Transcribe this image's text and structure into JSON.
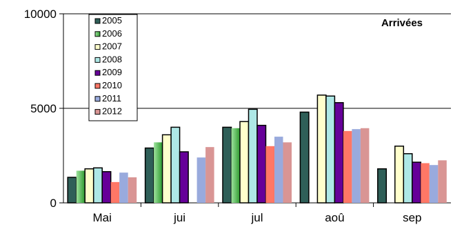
{
  "chart_data": {
    "type": "bar",
    "title": "Arrivées",
    "categories": [
      "Mai",
      "jui",
      "jul",
      "aoû",
      "sep"
    ],
    "ylim": [
      0,
      10000
    ],
    "yticks": [
      0,
      5000,
      10000
    ],
    "ytick_labels": [
      "0",
      "5000",
      "10000"
    ],
    "grid": true,
    "legend_position": "top-left",
    "series": [
      {
        "name": "2005",
        "color": "#2F5F58",
        "values": [
          1350,
          2900,
          4000,
          4800,
          1800
        ]
      },
      {
        "name": "2006",
        "color": "#44AA44",
        "values": [
          1700,
          3200,
          3950,
          null,
          null
        ]
      },
      {
        "name": "2007",
        "color": "#FFFFCC",
        "values": [
          1800,
          3600,
          4300,
          5700,
          3000
        ]
      },
      {
        "name": "2008",
        "color": "#AEE8E6",
        "values": [
          1850,
          4000,
          4950,
          5650,
          2600
        ]
      },
      {
        "name": "2009",
        "color": "#660099",
        "values": [
          1650,
          2700,
          4100,
          5300,
          2150
        ]
      },
      {
        "name": "2010",
        "color": "#FF7766",
        "values": [
          1100,
          null,
          3000,
          3800,
          2100
        ]
      },
      {
        "name": "2011",
        "color": "#99AADD",
        "values": [
          1600,
          2400,
          3500,
          3900,
          2000
        ]
      },
      {
        "name": "2012",
        "color": "#D99594",
        "values": [
          1350,
          2950,
          3200,
          3950,
          2250
        ]
      }
    ]
  }
}
